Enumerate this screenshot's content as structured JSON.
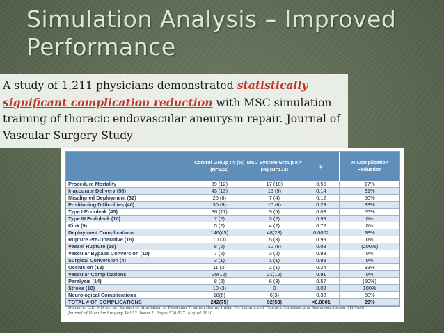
{
  "slide": {
    "title_line1": "Simulation Analysis – Improved",
    "title_line2": "Performance",
    "body_part1": "A study of 1,211 physicians demonstrated ",
    "body_highlight": "statistically significant complication reduction",
    "body_part2": " with MSC simulation training of thoracic endovascular aneurysm repair. Journal of Vascular Surgery Study"
  },
  "table": {
    "headers": [
      "",
      "Control Group I # (%) (N=322)",
      "MSC System Group II # (%) (N=172)",
      "p",
      "% Complication Reduction"
    ],
    "rows": [
      [
        "Procedure Mortality",
        "39 (12)",
        "17 (10)",
        "0.55",
        "17%"
      ],
      [
        "Inaccurate Delivery (58)",
        "43 (13)",
        "15 (9)",
        "0.14",
        "31%"
      ],
      [
        "Misaligned Deployment (32)",
        "25 (8)",
        "7 (4)",
        "0.12",
        "50%"
      ],
      [
        "Positioning Difficulties (40)",
        "30 (9)",
        "10 (6)",
        "0.23",
        "33%"
      ],
      [
        "Type I Endoleak (45)",
        "36 (11)",
        "9 (5)",
        "0.03",
        "55%"
      ],
      [
        "Type III Endoleak (10)",
        "7 (2)",
        "3 (2)",
        "0.99",
        "0%"
      ],
      [
        "Kink (9)",
        "5 (2)",
        "4 (2)",
        "0.72",
        "0%"
      ],
      [
        "Deployment Complications",
        "146(45)",
        "48(28)",
        "0.0002",
        "38%"
      ],
      [
        "Rupture Pre-Operative (15)",
        "10 (3)",
        "5 (3)",
        "0.99",
        "0%"
      ],
      [
        "Vessel Rupture (18)",
        "8 (2)",
        "10 (6)",
        "0.08",
        "(200%)"
      ],
      [
        "Vascular Bypass Conversion (10)",
        "7 (2)",
        "3 (2)",
        "0.99",
        "0%"
      ],
      [
        "Surgical Conversion (4)",
        "3 (1)",
        "1 (1)",
        "0.99",
        "0%"
      ],
      [
        "Occlusion (13)",
        "11 (3)",
        "2 (1)",
        "0.24",
        "33%"
      ],
      [
        "Vascular Complications",
        "39(12)",
        "21(12)",
        "0.91",
        "0%"
      ],
      [
        "Paralysis (14)",
        "8 (2)",
        "6 (3)",
        "0.57",
        "(50%)"
      ],
      [
        "Stroke (10)",
        "10 (3)",
        "0",
        "0.02",
        "100%"
      ],
      [
        "Neurological Complications",
        "18(6)",
        "6(3)",
        "0.38",
        "50%"
      ],
      [
        "TOTAL # OF COMPLICATIONS",
        "242(75)",
        "92(53)",
        "<0.0001",
        "29%"
      ]
    ]
  },
  "citation": {
    "line1": "Donayre, C.E. MD, et. al. \"Impact of Simulation in Physician Training During Initial Performance of Thoracic Endovascular Aneurysm Repair (TEVAR).\"",
    "line2": "Journal of Vascular Surgery. Vol 52. Issue 2. Pages 526-527. August 2010."
  }
}
